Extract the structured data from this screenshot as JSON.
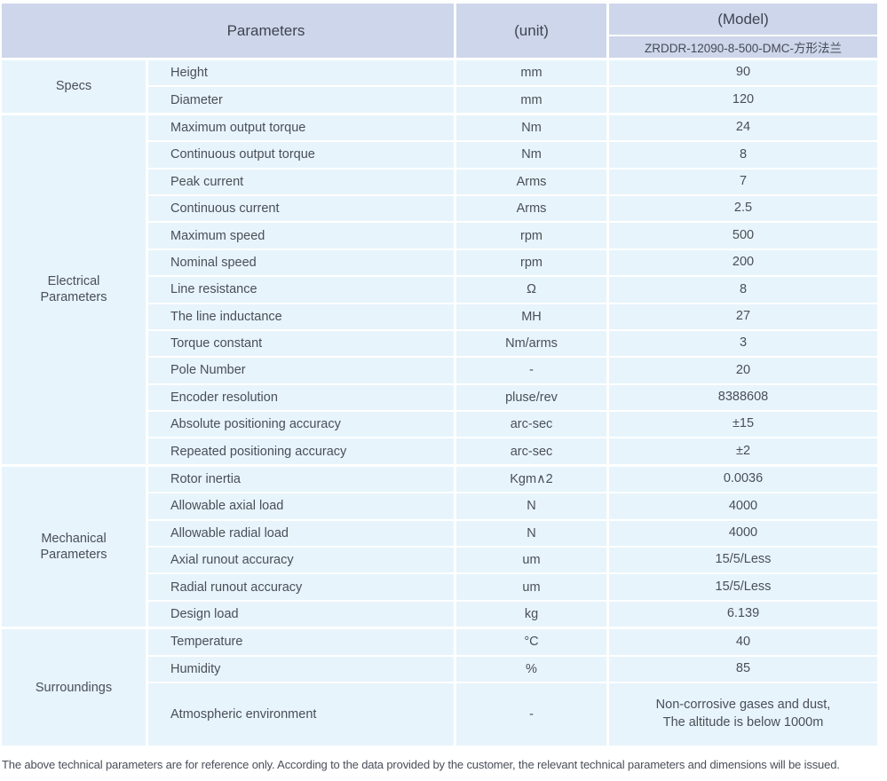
{
  "colors": {
    "header_bg": "#cdd6ea",
    "row_bg": "#e7f4fb",
    "text": "#4a4e59"
  },
  "header": {
    "parameters_label": "Parameters",
    "unit_label": "(unit)",
    "model_label": "(Model)",
    "model_value": "ZRDDR-12090-8-500-DMC-方形法兰"
  },
  "sections": [
    {
      "name": "Specs",
      "rows": [
        {
          "param": "Height",
          "unit": "mm",
          "value": "90"
        },
        {
          "param": "Diameter",
          "unit": "mm",
          "value": "120"
        }
      ]
    },
    {
      "name": "Electrical Parameters",
      "rows": [
        {
          "param": "Maximum output torque",
          "unit": "Nm",
          "value": "24"
        },
        {
          "param": "Continuous output torque",
          "unit": "Nm",
          "value": "8"
        },
        {
          "param": "Peak current",
          "unit": "Arms",
          "value": "7"
        },
        {
          "param": "Continuous current",
          "unit": "Arms",
          "value": "2.5"
        },
        {
          "param": "Maximum speed",
          "unit": "rpm",
          "value": "500"
        },
        {
          "param": "Nominal speed",
          "unit": "rpm",
          "value": "200"
        },
        {
          "param": "Line resistance",
          "unit": "Ω",
          "value": "8"
        },
        {
          "param": "The line inductance",
          "unit": "MH",
          "value": "27"
        },
        {
          "param": "Torque constant",
          "unit": "Nm/arms",
          "value": "3"
        },
        {
          "param": "Pole Number",
          "unit": "-",
          "value": "20"
        },
        {
          "param": "Encoder resolution",
          "unit": "pluse/rev",
          "value": "8388608"
        },
        {
          "param": "Absolute positioning accuracy",
          "unit": "arc-sec",
          "value": "±15"
        },
        {
          "param": "Repeated positioning accuracy",
          "unit": "arc-sec",
          "value": "±2"
        }
      ]
    },
    {
      "name": "Mechanical Parameters",
      "rows": [
        {
          "param": "Rotor inertia",
          "unit": "Kgm∧2",
          "value": "0.0036"
        },
        {
          "param": "Allowable axial load",
          "unit": "N",
          "value": "4000"
        },
        {
          "param": "Allowable radial load",
          "unit": "N",
          "value": "4000"
        },
        {
          "param": "Axial runout accuracy",
          "unit": "um",
          "value": "15/5/Less"
        },
        {
          "param": "Radial runout accuracy",
          "unit": "um",
          "value": "15/5/Less"
        },
        {
          "param": "Design load",
          "unit": "kg",
          "value": "6.139"
        }
      ]
    },
    {
      "name": "Surroundings",
      "rows": [
        {
          "param": "Temperature",
          "unit": "°C",
          "value": "40"
        },
        {
          "param": "Humidity",
          "unit": "%",
          "value": "85"
        },
        {
          "param": "Atmospheric environment",
          "unit": "-",
          "value": "Non-corrosive gases and dust,\nThe altitude is below 1000m"
        }
      ]
    }
  ],
  "footer": {
    "note": "The above technical parameters are for reference only. According to the data provided by the customer, the relevant technical parameters and dimensions will be issued."
  }
}
